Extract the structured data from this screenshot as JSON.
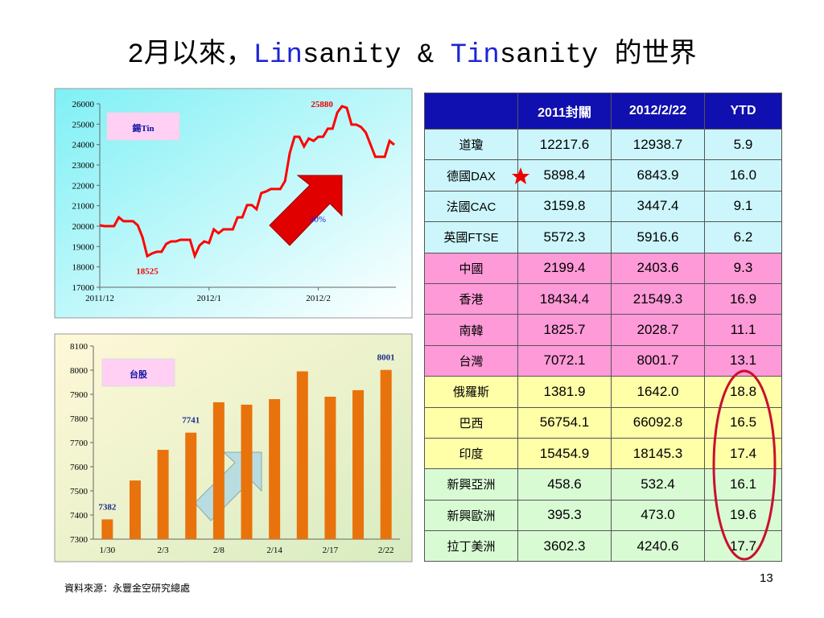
{
  "title_parts": [
    "2月以來，",
    "Lin",
    "sanity & ",
    "Tin",
    "sanity 的世界"
  ],
  "chart_data": [
    {
      "type": "line",
      "label": "錫Tin",
      "annotation": "40%",
      "color": "#ff0000",
      "categories": [
        "2011/12",
        null,
        null,
        null,
        null,
        null,
        null,
        null,
        null,
        null,
        null,
        null,
        null,
        null,
        null,
        null,
        null,
        null,
        null,
        null,
        null,
        null,
        null,
        "2012/1",
        null,
        null,
        null,
        null,
        null,
        null,
        null,
        null,
        null,
        null,
        null,
        null,
        null,
        null,
        null,
        null,
        null,
        null,
        null,
        null,
        null,
        null,
        "2012/2",
        null,
        null,
        null,
        null,
        null,
        null,
        null,
        null,
        null,
        null,
        null,
        null,
        null,
        null,
        null,
        null
      ],
      "values": [
        20040,
        20000,
        20000,
        20000,
        20430,
        20240,
        20240,
        20240,
        20040,
        19450,
        18525,
        18660,
        18740,
        18740,
        19130,
        19250,
        19250,
        19330,
        19330,
        19330,
        18540,
        19050,
        19250,
        19170,
        19840,
        19650,
        19840,
        19840,
        19840,
        20430,
        20430,
        21030,
        21030,
        20830,
        21620,
        21700,
        21820,
        21820,
        21820,
        22210,
        23590,
        24380,
        24380,
        23910,
        24300,
        24180,
        24380,
        24380,
        24780,
        24780,
        25570,
        25880,
        25800,
        24980,
        24980,
        24860,
        24590,
        24000,
        23400,
        23400,
        23400,
        24180,
        23990
      ],
      "ylim": [
        17000,
        26000
      ],
      "yticks": [
        17000,
        18000,
        19000,
        20000,
        21000,
        22000,
        23000,
        24000,
        25000,
        26000
      ]
    },
    {
      "type": "bar",
      "label": "台股",
      "color": "#e8730c",
      "categories": [
        "1/30",
        null,
        "2/3",
        null,
        "2/8",
        null,
        "2/14",
        null,
        "2/17",
        null,
        "2/22"
      ],
      "values": [
        7382,
        7543,
        7670,
        7741,
        7867,
        7857,
        7880,
        7995,
        7890,
        7917,
        8001
      ],
      "ylim": [
        7300,
        8100
      ],
      "yticks": [
        7300,
        7400,
        7500,
        7600,
        7700,
        7800,
        7900,
        8000,
        8100
      ]
    }
  ],
  "table": {
    "header": [
      "2011封關",
      "2012/2/22",
      "YTD"
    ],
    "rows": [
      [
        "道瓊",
        "12217.6",
        "12938.7",
        "5.9"
      ],
      [
        "德國DAX",
        "5898.4",
        "6843.9",
        "16.0"
      ],
      [
        "法國CAC",
        "3159.8",
        "3447.4",
        "9.1"
      ],
      [
        "英國FTSE",
        "5572.3",
        "5916.6",
        "6.2"
      ],
      [
        "中國",
        "2199.4",
        "2403.6",
        "9.3"
      ],
      [
        "香港",
        "18434.4",
        "21549.3",
        "16.9"
      ],
      [
        "南韓",
        "1825.7",
        "2028.7",
        "11.1"
      ],
      [
        "台灣",
        "7072.1",
        "8001.7",
        "13.1"
      ],
      [
        "俄羅斯",
        "1381.9",
        "1642.0",
        "18.8"
      ],
      [
        "巴西",
        "56754.1",
        "66092.8",
        "16.5"
      ],
      [
        "印度",
        "15454.9",
        "18145.3",
        "17.4"
      ],
      [
        "新興亞洲",
        "458.6",
        "532.4",
        "16.1"
      ],
      [
        "新興歐洲",
        "395.3",
        "473.0",
        "19.6"
      ],
      [
        "拉丁美洲",
        "3602.3",
        "4240.6",
        "17.7"
      ]
    ]
  },
  "source": "資料來源：永豐金空研究總處",
  "page_number": "13"
}
